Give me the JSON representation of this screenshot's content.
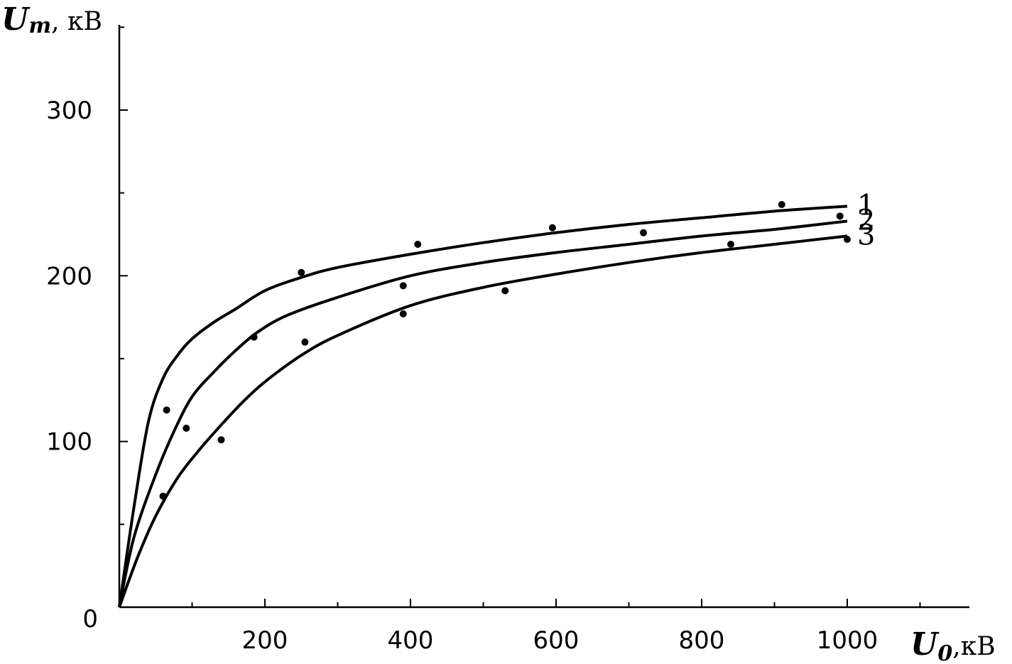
{
  "chart_data": {
    "type": "line",
    "x_axis": {
      "label_main": "U",
      "label_sub": "0",
      "label_unit": ",кВ",
      "ticks": [
        200,
        400,
        600,
        800,
        1000
      ],
      "range": [
        0,
        1150
      ]
    },
    "y_axis": {
      "label_main": "U",
      "label_sub": "m",
      "label_unit": ", кВ",
      "ticks": [
        0,
        100,
        200,
        300
      ],
      "range": [
        0,
        350
      ]
    },
    "series": [
      {
        "name": "1",
        "curve": [
          [
            0,
            0
          ],
          [
            20,
            60
          ],
          [
            40,
            112
          ],
          [
            60,
            138
          ],
          [
            80,
            152
          ],
          [
            100,
            162
          ],
          [
            130,
            172
          ],
          [
            160,
            180
          ],
          [
            200,
            191
          ],
          [
            250,
            199
          ],
          [
            300,
            205
          ],
          [
            400,
            213
          ],
          [
            500,
            220
          ],
          [
            600,
            226
          ],
          [
            700,
            231
          ],
          [
            800,
            235
          ],
          [
            900,
            239
          ],
          [
            1000,
            242
          ]
        ],
        "points": [
          [
            65,
            119
          ],
          [
            250,
            202
          ],
          [
            410,
            219
          ],
          [
            595,
            229
          ],
          [
            720,
            226
          ],
          [
            910,
            243
          ]
        ]
      },
      {
        "name": "2",
        "curve": [
          [
            0,
            0
          ],
          [
            20,
            42
          ],
          [
            50,
            80
          ],
          [
            75,
            106
          ],
          [
            100,
            127
          ],
          [
            130,
            142
          ],
          [
            160,
            155
          ],
          [
            190,
            166
          ],
          [
            230,
            176
          ],
          [
            300,
            187
          ],
          [
            400,
            200
          ],
          [
            500,
            208
          ],
          [
            600,
            214
          ],
          [
            700,
            219
          ],
          [
            800,
            224
          ],
          [
            900,
            228
          ],
          [
            1000,
            233
          ]
        ],
        "points": [
          [
            60,
            67
          ],
          [
            92,
            108
          ],
          [
            185,
            163
          ],
          [
            390,
            194
          ],
          [
            990,
            236
          ]
        ]
      },
      {
        "name": "3",
        "curve": [
          [
            0,
            0
          ],
          [
            25,
            30
          ],
          [
            50,
            55
          ],
          [
            80,
            78
          ],
          [
            110,
            95
          ],
          [
            140,
            110
          ],
          [
            170,
            124
          ],
          [
            200,
            136
          ],
          [
            250,
            152
          ],
          [
            300,
            164
          ],
          [
            400,
            182
          ],
          [
            500,
            193
          ],
          [
            600,
            201
          ],
          [
            700,
            208
          ],
          [
            800,
            214
          ],
          [
            900,
            219
          ],
          [
            1000,
            224
          ]
        ],
        "points": [
          [
            140,
            101
          ],
          [
            255,
            160
          ],
          [
            390,
            177
          ],
          [
            530,
            191
          ],
          [
            840,
            219
          ],
          [
            1000,
            222
          ]
        ]
      }
    ]
  }
}
